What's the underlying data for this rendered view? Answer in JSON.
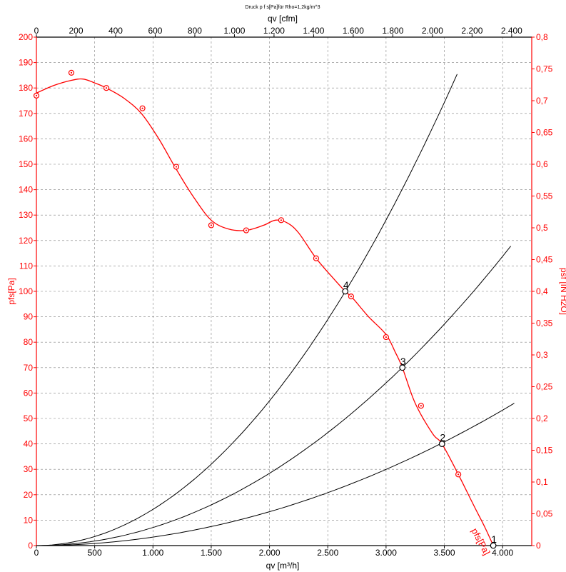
{
  "chart_data": {
    "type": "line",
    "title": "Druck p f s[Pa]für Rho=1,2kg/m^3",
    "xlabel": "qv [m³/h]",
    "x2label": "qv [cfm]",
    "ylabel": "pfs[Pa]",
    "y2label": "psf [IN H2O]",
    "xlim": [
      0,
      4250
    ],
    "ylim": [
      0,
      200
    ],
    "x_ticks": [
      "0",
      "500",
      "1.000",
      "1.500",
      "2.000",
      "2.500",
      "3.000",
      "3.500",
      "4.000"
    ],
    "x2_ticks": [
      "0",
      "200",
      "400",
      "600",
      "800",
      "1.000",
      "1.200",
      "1.400",
      "1.600",
      "1.800",
      "2.000",
      "2.200",
      "2.400"
    ],
    "y_ticks": [
      "0",
      "10",
      "20",
      "30",
      "40",
      "50",
      "60",
      "70",
      "80",
      "90",
      "100",
      "110",
      "120",
      "130",
      "140",
      "150",
      "160",
      "170",
      "180",
      "190",
      "200"
    ],
    "y2_ticks": [
      "0",
      "0,05",
      "0,1",
      "0,15",
      "0,2",
      "0,25",
      "0,3",
      "0,35",
      "0,4",
      "0,45",
      "0,5",
      "0,55",
      "0,6",
      "0,65",
      "0,7",
      "0,75",
      "0,8"
    ],
    "grid": true,
    "fan_curve": {
      "name": "pfs[Pa]",
      "color": "#ff0000",
      "line": [
        [
          0,
          178
        ],
        [
          150,
          181
        ],
        [
          300,
          183
        ],
        [
          400,
          183.5
        ],
        [
          500,
          182
        ],
        [
          600,
          180
        ],
        [
          750,
          176
        ],
        [
          900,
          170
        ],
        [
          1050,
          160
        ],
        [
          1200,
          148
        ],
        [
          1350,
          137
        ],
        [
          1500,
          128
        ],
        [
          1650,
          124.5
        ],
        [
          1800,
          124
        ],
        [
          1950,
          126
        ],
        [
          2050,
          128
        ],
        [
          2150,
          127
        ],
        [
          2250,
          123
        ],
        [
          2400,
          113
        ],
        [
          2550,
          105
        ],
        [
          2650,
          100
        ],
        [
          2720,
          97
        ],
        [
          2850,
          90
        ],
        [
          3000,
          83
        ],
        [
          3080,
          76
        ],
        [
          3140,
          70
        ],
        [
          3250,
          56
        ],
        [
          3400,
          44
        ],
        [
          3480,
          40
        ],
        [
          3620,
          28
        ],
        [
          3750,
          16
        ],
        [
          3850,
          7
        ],
        [
          3920,
          0
        ]
      ],
      "markers": [
        [
          0,
          177
        ],
        [
          300,
          186
        ],
        [
          600,
          180
        ],
        [
          910,
          172
        ],
        [
          1200,
          149
        ],
        [
          1500,
          126
        ],
        [
          1800,
          124
        ],
        [
          2100,
          128
        ],
        [
          2400,
          113
        ],
        [
          2700,
          98
        ],
        [
          3000,
          82
        ],
        [
          3300,
          55
        ],
        [
          3620,
          28
        ]
      ]
    },
    "system_curves": [
      {
        "label": "4",
        "color": "#000000",
        "k": 1.423e-05,
        "x_end": 3610
      },
      {
        "label": "3",
        "color": "#000000",
        "k": 7.11e-06,
        "x_end": 4070
      },
      {
        "label": "2",
        "color": "#000000",
        "k": 3.33e-06,
        "x_end": 4100
      }
    ],
    "operating_points": [
      {
        "label": "1",
        "x": 3920,
        "y": 0
      },
      {
        "label": "2",
        "x": 3480,
        "y": 40
      },
      {
        "label": "3",
        "x": 3140,
        "y": 70
      },
      {
        "label": "4",
        "x": 2650,
        "y": 100
      }
    ]
  }
}
